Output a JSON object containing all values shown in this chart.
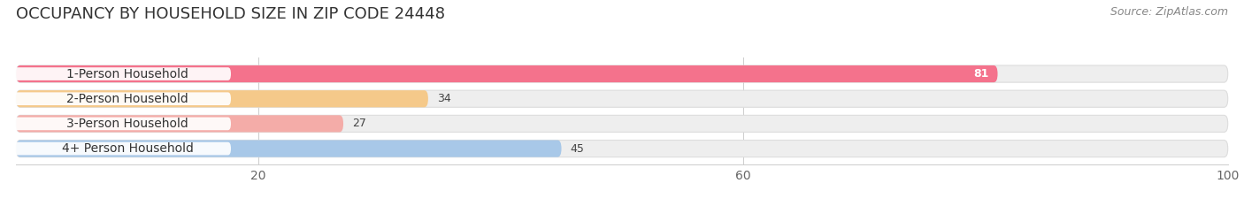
{
  "title": "OCCUPANCY BY HOUSEHOLD SIZE IN ZIP CODE 24448",
  "source": "Source: ZipAtlas.com",
  "categories": [
    "1-Person Household",
    "2-Person Household",
    "3-Person Household",
    "4+ Person Household"
  ],
  "values": [
    81,
    34,
    27,
    45
  ],
  "bar_colors": [
    "#F4728C",
    "#F5C98A",
    "#F4ACA8",
    "#A8C8E8"
  ],
  "value_in_bar": [
    true,
    false,
    false,
    false
  ],
  "xlim_max": 107,
  "data_max": 100,
  "xticks": [
    20,
    60,
    100
  ],
  "background_color": "#ffffff",
  "bar_bg_color": "#eeeeee",
  "bar_bg_edge_color": "#dddddd",
  "title_fontsize": 13,
  "source_fontsize": 9,
  "tick_fontsize": 10,
  "label_fontsize": 10,
  "value_fontsize": 9,
  "bar_height": 0.68,
  "bar_gap": 1.0
}
